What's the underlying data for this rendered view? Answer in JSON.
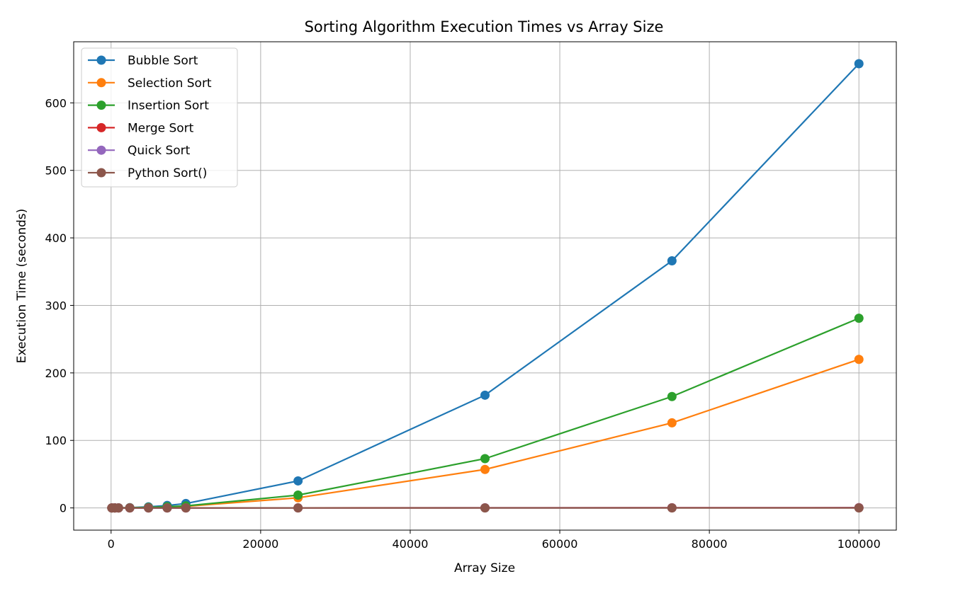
{
  "chart_data": {
    "type": "line",
    "title": "Sorting Algorithm Execution Times vs Array Size",
    "xlabel": "Array Size",
    "ylabel": "Execution Time (seconds)",
    "xlim": [
      -5000,
      105000
    ],
    "ylim": [
      -32.9,
      690.5
    ],
    "xticks": [
      0,
      20000,
      40000,
      60000,
      80000,
      100000
    ],
    "xtick_labels": [
      "0",
      "20000",
      "40000",
      "60000",
      "80000",
      "100000"
    ],
    "yticks": [
      0,
      100,
      200,
      300,
      400,
      500,
      600
    ],
    "ytick_labels": [
      "0",
      "100",
      "200",
      "300",
      "400",
      "500",
      "600"
    ],
    "grid": true,
    "legend_position": "upper-left",
    "x": [
      100,
      500,
      1000,
      2500,
      5000,
      7500,
      10000,
      25000,
      50000,
      75000,
      100000
    ],
    "series": [
      {
        "name": "Bubble Sort",
        "color": "#1f77b4",
        "values": [
          0.001,
          0.03,
          0.07,
          0.42,
          1.6,
          3.6,
          6.5,
          40,
          167,
          366,
          658
        ]
      },
      {
        "name": "Selection Sort",
        "color": "#ff7f0e",
        "values": [
          0.0005,
          0.012,
          0.03,
          0.18,
          0.6,
          1.4,
          2.3,
          15,
          57,
          126,
          220
        ]
      },
      {
        "name": "Insertion Sort",
        "color": "#2ca02c",
        "values": [
          0.0005,
          0.015,
          0.04,
          0.22,
          0.8,
          1.8,
          3.0,
          19,
          73,
          165,
          281
        ]
      },
      {
        "name": "Merge Sort",
        "color": "#d62728",
        "values": [
          0.0002,
          0.001,
          0.002,
          0.006,
          0.012,
          0.02,
          0.028,
          0.08,
          0.17,
          0.27,
          0.37
        ]
      },
      {
        "name": "Quick Sort",
        "color": "#9467bd",
        "values": [
          0.0001,
          0.0006,
          0.0012,
          0.004,
          0.008,
          0.013,
          0.018,
          0.05,
          0.11,
          0.17,
          0.23
        ]
      },
      {
        "name": "Python Sort()",
        "color": "#8c564b",
        "values": [
          1e-05,
          5e-05,
          0.0001,
          0.0003,
          0.0006,
          0.001,
          0.0013,
          0.004,
          0.009,
          0.014,
          0.02
        ]
      }
    ]
  }
}
